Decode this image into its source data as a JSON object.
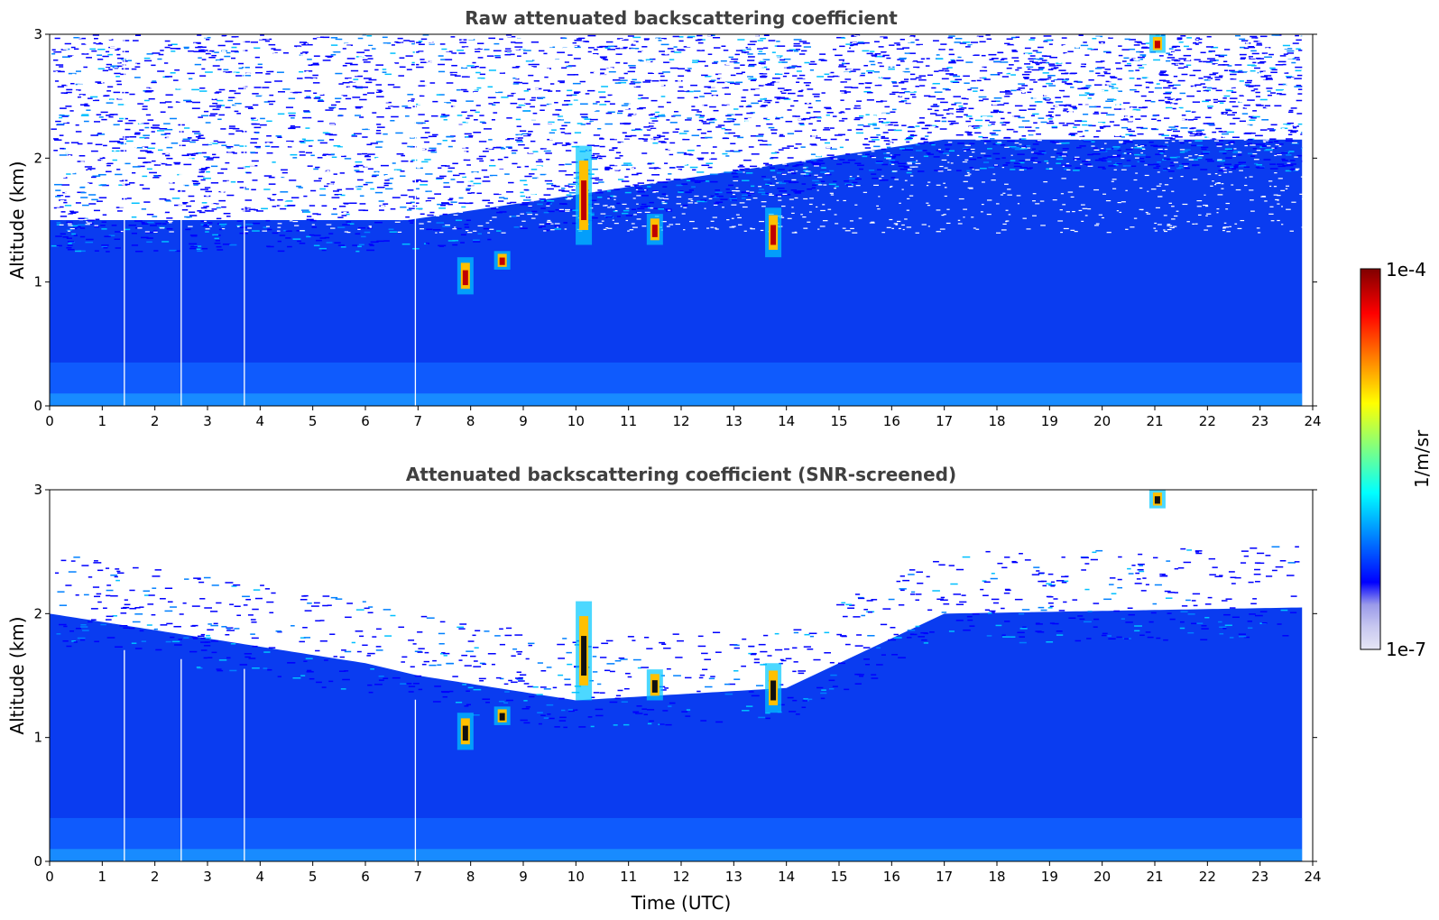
{
  "chart_data": [
    {
      "type": "heatmap",
      "title": "Raw attenuated backscattering coefficient",
      "xlabel": "",
      "ylabel": "Altitude (km)",
      "xlim": [
        0,
        24
      ],
      "ylim": [
        0,
        3
      ],
      "xticks": [
        "0",
        "1",
        "2",
        "3",
        "4",
        "5",
        "6",
        "7",
        "8",
        "9",
        "10",
        "11",
        "12",
        "13",
        "14",
        "15",
        "16",
        "17",
        "18",
        "19",
        "20",
        "21",
        "22",
        "23",
        "24"
      ],
      "yticks": [
        "0",
        "1",
        "2",
        "3"
      ],
      "gap_lines_hours": [
        1.42,
        2.5,
        3.7,
        6.95
      ],
      "boundary_layer_top_km": [
        [
          0,
          1.5
        ],
        [
          6,
          1.5
        ],
        [
          6.8,
          1.5
        ],
        [
          17,
          2.15
        ],
        [
          23.8,
          2.15
        ]
      ],
      "clouds": [
        {
          "time_h": 7.9,
          "base_km": 0.9,
          "top_km": 1.2
        },
        {
          "time_h": 8.6,
          "base_km": 1.1,
          "top_km": 1.25
        },
        {
          "time_h": 10.15,
          "base_km": 1.3,
          "top_km": 2.1
        },
        {
          "time_h": 11.5,
          "base_km": 1.3,
          "top_km": 1.55
        },
        {
          "time_h": 13.75,
          "base_km": 1.2,
          "top_km": 1.6
        },
        {
          "time_h": 21.05,
          "base_km": 2.85,
          "top_km": 3.0
        }
      ]
    },
    {
      "type": "heatmap",
      "title": "Attenuated backscattering coefficient (SNR-screened)",
      "xlabel": "Time (UTC)",
      "ylabel": "Altitude (km)",
      "xlim": [
        0,
        24
      ],
      "ylim": [
        0,
        3
      ],
      "xticks": [
        "0",
        "1",
        "2",
        "3",
        "4",
        "5",
        "6",
        "7",
        "8",
        "9",
        "10",
        "11",
        "12",
        "13",
        "14",
        "15",
        "16",
        "17",
        "18",
        "19",
        "20",
        "21",
        "22",
        "23",
        "24"
      ],
      "yticks": [
        "0",
        "1",
        "2",
        "3"
      ],
      "gap_lines_hours": [
        1.42,
        2.5,
        3.7,
        6.95
      ],
      "boundary_layer_top_km": [
        [
          0,
          2.0
        ],
        [
          6,
          1.6
        ],
        [
          7,
          1.5
        ],
        [
          10,
          1.3
        ],
        [
          14,
          1.4
        ],
        [
          17,
          2.0
        ],
        [
          23.8,
          2.05
        ]
      ],
      "clouds": [
        {
          "time_h": 7.9,
          "base_km": 0.9,
          "top_km": 1.2
        },
        {
          "time_h": 8.6,
          "base_km": 1.1,
          "top_km": 1.25
        },
        {
          "time_h": 10.15,
          "base_km": 1.3,
          "top_km": 2.1
        },
        {
          "time_h": 11.5,
          "base_km": 1.3,
          "top_km": 1.55
        },
        {
          "time_h": 13.75,
          "base_km": 1.2,
          "top_km": 1.6
        },
        {
          "time_h": 21.05,
          "base_km": 2.85,
          "top_km": 3.0
        }
      ]
    }
  ],
  "colorbar": {
    "label": "1/m/sr",
    "max_label": "1e-4",
    "min_label": "1e-7",
    "colormap": "jet",
    "colors": [
      "#e6e6f5",
      "#c8c8f0",
      "#9a9aea",
      "#0000ff",
      "#0040ff",
      "#0080ff",
      "#00c0ff",
      "#00ffff",
      "#40ffc0",
      "#80ff80",
      "#c0ff40",
      "#ffff00",
      "#ffc000",
      "#ff8000",
      "#ff4000",
      "#ff0000",
      "#c00000",
      "#800000"
    ]
  }
}
